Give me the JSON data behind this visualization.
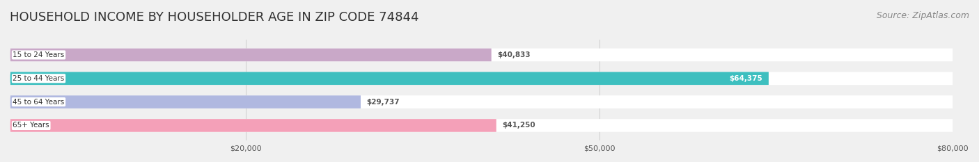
{
  "title": "HOUSEHOLD INCOME BY HOUSEHOLDER AGE IN ZIP CODE 74844",
  "source": "Source: ZipAtlas.com",
  "categories": [
    "15 to 24 Years",
    "25 to 44 Years",
    "45 to 64 Years",
    "65+ Years"
  ],
  "values": [
    40833,
    64375,
    29737,
    41250
  ],
  "bar_colors": [
    "#c9a8c8",
    "#3dbfbf",
    "#b0b8e0",
    "#f4a0b8"
  ],
  "label_colors": [
    "#c9a8c8",
    "#3dbfbf",
    "#b0b8e0",
    "#f4a0b8"
  ],
  "value_colors": [
    "#555555",
    "#ffffff",
    "#555555",
    "#555555"
  ],
  "xlim": [
    0,
    80000
  ],
  "xticks": [
    20000,
    50000,
    80000
  ],
  "xtick_labels": [
    "$20,000",
    "$50,000",
    "$80,000"
  ],
  "background_color": "#f0f0f0",
  "bar_track_color": "#ffffff",
  "title_fontsize": 13,
  "source_fontsize": 9,
  "bar_height": 0.55,
  "fig_width": 14.06,
  "fig_height": 2.33
}
